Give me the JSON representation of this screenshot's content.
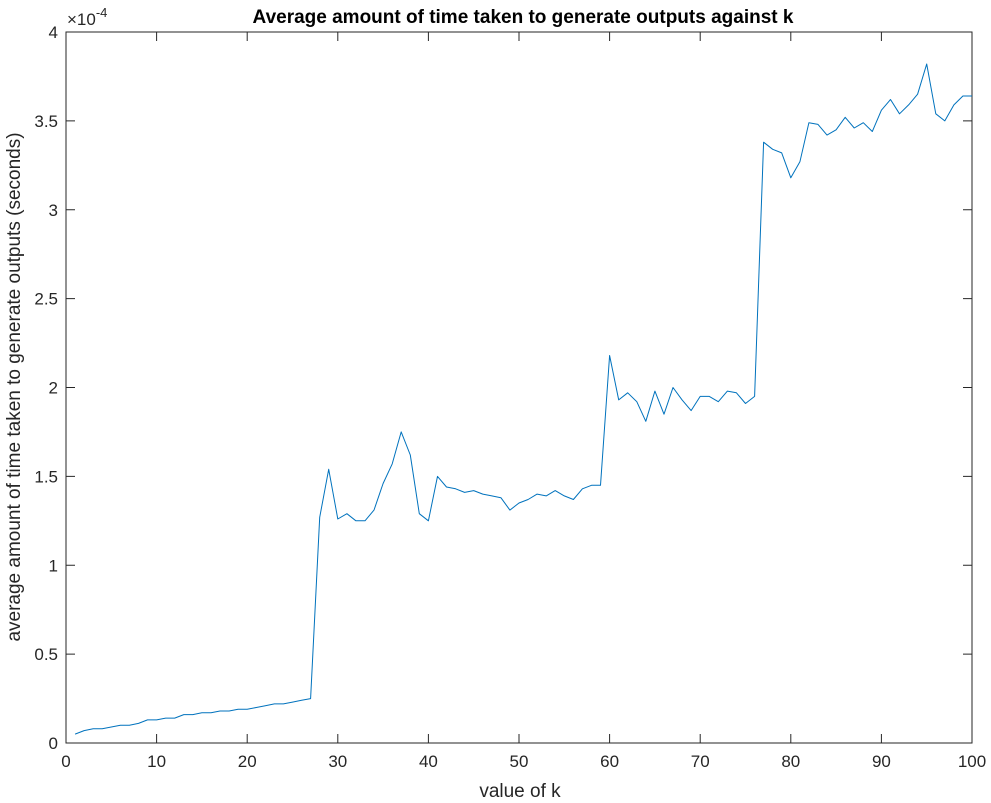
{
  "chart_data": {
    "type": "line",
    "title": "Average amount of time taken to generate outputs against k",
    "xlabel": "value of k",
    "ylabel": "average amount of time taken to generate outputs (seconds)",
    "y_exponent_label": "×10",
    "y_exponent_power": "-4",
    "xlim": [
      0,
      100
    ],
    "ylim": [
      0,
      4
    ],
    "x_ticks": [
      0,
      10,
      20,
      30,
      40,
      50,
      60,
      70,
      80,
      90,
      100
    ],
    "x_tick_labels": [
      "0",
      "10",
      "20",
      "30",
      "40",
      "50",
      "60",
      "70",
      "80",
      "90",
      "100"
    ],
    "y_ticks": [
      0,
      0.5,
      1,
      1.5,
      2,
      2.5,
      3,
      3.5,
      4
    ],
    "y_tick_labels": [
      "0",
      "0.5",
      "1",
      "1.5",
      "2",
      "2.5",
      "3",
      "3.5",
      "4"
    ],
    "grid": false,
    "line_color": "#0072BD",
    "series": [
      {
        "x": [
          1,
          2,
          3,
          4,
          5,
          6,
          7,
          8,
          9,
          10,
          11,
          12,
          13,
          14,
          15,
          16,
          17,
          18,
          19,
          20,
          21,
          22,
          23,
          24,
          25,
          26,
          27,
          28,
          29,
          30,
          31,
          32,
          33,
          34,
          35,
          36,
          37,
          38,
          39,
          40,
          41,
          42,
          43,
          44,
          45,
          46,
          47,
          48,
          49,
          50,
          51,
          52,
          53,
          54,
          55,
          56,
          57,
          58,
          59,
          60,
          61,
          62,
          63,
          64,
          65,
          66,
          67,
          68,
          69,
          70,
          71,
          72,
          73,
          74,
          75,
          76,
          77,
          78,
          79,
          80,
          81,
          82,
          83,
          84,
          85,
          86,
          87,
          88,
          89,
          90,
          91,
          92,
          93,
          94,
          95,
          96,
          97,
          98,
          99,
          100
        ],
        "values": [
          0.05,
          0.07,
          0.08,
          0.08,
          0.09,
          0.1,
          0.1,
          0.11,
          0.13,
          0.13,
          0.14,
          0.14,
          0.16,
          0.16,
          0.17,
          0.17,
          0.18,
          0.18,
          0.19,
          0.19,
          0.2,
          0.21,
          0.22,
          0.22,
          0.23,
          0.24,
          0.25,
          1.27,
          1.54,
          1.26,
          1.29,
          1.25,
          1.25,
          1.31,
          1.46,
          1.57,
          1.75,
          1.62,
          1.29,
          1.25,
          1.5,
          1.44,
          1.43,
          1.41,
          1.42,
          1.4,
          1.39,
          1.38,
          1.31,
          1.35,
          1.37,
          1.4,
          1.39,
          1.42,
          1.39,
          1.37,
          1.43,
          1.45,
          1.45,
          2.18,
          1.93,
          1.97,
          1.92,
          1.81,
          1.98,
          1.85,
          2.0,
          1.93,
          1.87,
          1.95,
          1.95,
          1.92,
          1.98,
          1.97,
          1.91,
          1.95,
          3.38,
          3.34,
          3.32,
          3.18,
          3.27,
          3.49,
          3.48,
          3.42,
          3.45,
          3.52,
          3.46,
          3.49,
          3.44,
          3.56,
          3.62,
          3.54,
          3.59,
          3.65,
          3.82,
          3.54,
          3.5,
          3.59,
          3.64,
          3.64
        ]
      }
    ]
  }
}
